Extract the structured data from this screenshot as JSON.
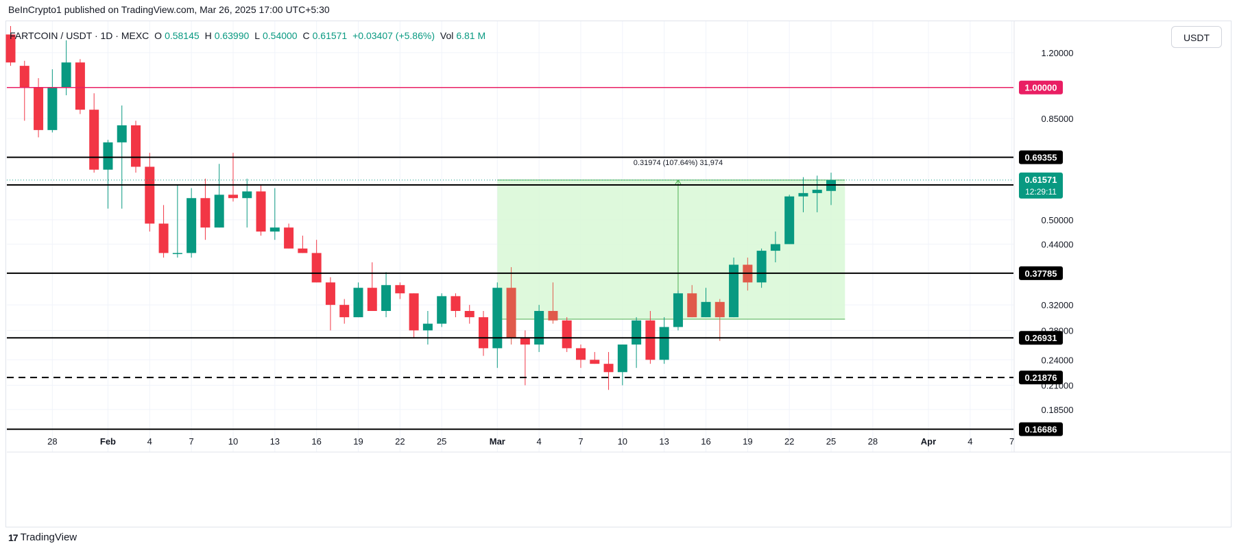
{
  "publisher": "BeInCrypto1 published on TradingView.com, Mar 26, 2025 17:00 UTC+5:30",
  "legend": {
    "symbol": "FARTCOIN / USDT · 1D · MEXC",
    "o_key": "O",
    "o": "0.58145",
    "h_key": "H",
    "h": "0.63990",
    "l_key": "L",
    "l": "0.54000",
    "c_key": "C",
    "c": "0.61571",
    "change": "+0.03407 (+5.86%)",
    "vol_key": "Vol",
    "vol": "6.81 M"
  },
  "currency_button": "USDT",
  "footer": {
    "brand": "TradingView",
    "logo": "17"
  },
  "colors": {
    "up": "#089981",
    "down": "#f23645",
    "down_alt": "#e05a4b",
    "magenta": "#e91e63",
    "measure": "#4caf50",
    "measure_fill": "#d8f8d6"
  },
  "chart_data": {
    "type": "candlestick",
    "y_scale": "log",
    "ylim": [
      0.148,
      1.42
    ],
    "xlim": [
      "2025-01-25",
      "2025-04-09"
    ],
    "y_ticks": [
      "1.20000",
      "0.85000",
      "0.50000",
      "0.44000",
      "0.32000",
      "0.28000",
      "0.24000",
      "0.21000",
      "0.18500"
    ],
    "x_ticks": [
      {
        "date": "2025-01-28",
        "label": "28"
      },
      {
        "date": "2025-02-01",
        "label": "Feb",
        "bold": true
      },
      {
        "date": "2025-02-04",
        "label": "4"
      },
      {
        "date": "2025-02-07",
        "label": "7"
      },
      {
        "date": "2025-02-10",
        "label": "10"
      },
      {
        "date": "2025-02-13",
        "label": "13"
      },
      {
        "date": "2025-02-16",
        "label": "16"
      },
      {
        "date": "2025-02-19",
        "label": "19"
      },
      {
        "date": "2025-02-22",
        "label": "22"
      },
      {
        "date": "2025-02-25",
        "label": "25"
      },
      {
        "date": "2025-03-01",
        "label": "Mar",
        "bold": true
      },
      {
        "date": "2025-03-04",
        "label": "4"
      },
      {
        "date": "2025-03-07",
        "label": "7"
      },
      {
        "date": "2025-03-10",
        "label": "10"
      },
      {
        "date": "2025-03-13",
        "label": "13"
      },
      {
        "date": "2025-03-16",
        "label": "16"
      },
      {
        "date": "2025-03-19",
        "label": "19"
      },
      {
        "date": "2025-03-22",
        "label": "22"
      },
      {
        "date": "2025-03-25",
        "label": "25"
      },
      {
        "date": "2025-03-28",
        "label": "28"
      },
      {
        "date": "2025-04-01",
        "label": "Apr",
        "bold": true
      },
      {
        "date": "2025-04-04",
        "label": "4"
      },
      {
        "date": "2025-04-07",
        "label": "7"
      }
    ],
    "levels": [
      {
        "value": 1.0,
        "label": "1.00000",
        "color": "#e91e63",
        "style": "solid"
      },
      {
        "value": 0.69355,
        "label": "0.69355",
        "color": "#000000",
        "style": "solid"
      },
      {
        "value": 0.6,
        "label": "0.60000",
        "color": "#000000",
        "style": "solid"
      },
      {
        "value": 0.37785,
        "label": "0.37785",
        "color": "#000000",
        "style": "solid"
      },
      {
        "value": 0.26931,
        "label": "0.26931",
        "color": "#000000",
        "style": "solid"
      },
      {
        "value": 0.21876,
        "label": "0.21876",
        "color": "#000000",
        "style": "dashed"
      },
      {
        "value": 0.16686,
        "label": "0.16686",
        "color": "#000000",
        "style": "solid"
      }
    ],
    "last_price": {
      "value": 0.61571,
      "label": "0.61571",
      "countdown": "12:29:11",
      "color": "#089981"
    },
    "measure": {
      "start_date": "2025-03-01",
      "end_date": "2025-03-26",
      "low": 0.297,
      "high": 0.61571,
      "arrow_date": "2025-03-14",
      "label": "0.31974 (107.64%) 31,974"
    },
    "candles": [
      {
        "d": "2025-01-25",
        "o": 1.32,
        "h": 1.38,
        "l": 1.12,
        "c": 1.14
      },
      {
        "d": "2025-01-26",
        "o": 1.12,
        "h": 1.15,
        "l": 0.84,
        "c": 1.0
      },
      {
        "d": "2025-01-27",
        "o": 1.0,
        "h": 1.05,
        "l": 0.77,
        "c": 0.8
      },
      {
        "d": "2025-01-28",
        "o": 0.8,
        "h": 1.1,
        "l": 0.79,
        "c": 1.0
      },
      {
        "d": "2025-01-29",
        "o": 1.0,
        "h": 1.28,
        "l": 0.96,
        "c": 1.14
      },
      {
        "d": "2025-01-30",
        "o": 1.14,
        "h": 1.16,
        "l": 0.87,
        "c": 0.89
      },
      {
        "d": "2025-01-31",
        "o": 0.89,
        "h": 0.97,
        "l": 0.64,
        "c": 0.65
      },
      {
        "d": "2025-02-01",
        "o": 0.65,
        "h": 0.76,
        "l": 0.53,
        "c": 0.75
      },
      {
        "d": "2025-02-02",
        "o": 0.75,
        "h": 0.91,
        "l": 0.53,
        "c": 0.82
      },
      {
        "d": "2025-02-03",
        "o": 0.82,
        "h": 0.84,
        "l": 0.64,
        "c": 0.66
      },
      {
        "d": "2025-02-04",
        "o": 0.66,
        "h": 0.71,
        "l": 0.47,
        "c": 0.49
      },
      {
        "d": "2025-02-05",
        "o": 0.49,
        "h": 0.54,
        "l": 0.41,
        "c": 0.42
      },
      {
        "d": "2025-02-06",
        "o": 0.42,
        "h": 0.6,
        "l": 0.41,
        "c": 0.42
      },
      {
        "d": "2025-02-07",
        "o": 0.42,
        "h": 0.59,
        "l": 0.41,
        "c": 0.56
      },
      {
        "d": "2025-02-08",
        "o": 0.56,
        "h": 0.62,
        "l": 0.45,
        "c": 0.48
      },
      {
        "d": "2025-02-09",
        "o": 0.48,
        "h": 0.67,
        "l": 0.48,
        "c": 0.57
      },
      {
        "d": "2025-02-10",
        "o": 0.57,
        "h": 0.71,
        "l": 0.55,
        "c": 0.56
      },
      {
        "d": "2025-02-11",
        "o": 0.56,
        "h": 0.62,
        "l": 0.48,
        "c": 0.58
      },
      {
        "d": "2025-02-12",
        "o": 0.58,
        "h": 0.6,
        "l": 0.46,
        "c": 0.47
      },
      {
        "d": "2025-02-13",
        "o": 0.47,
        "h": 0.59,
        "l": 0.45,
        "c": 0.48
      },
      {
        "d": "2025-02-14",
        "o": 0.48,
        "h": 0.49,
        "l": 0.43,
        "c": 0.43
      },
      {
        "d": "2025-02-15",
        "o": 0.43,
        "h": 0.46,
        "l": 0.42,
        "c": 0.42
      },
      {
        "d": "2025-02-16",
        "o": 0.42,
        "h": 0.45,
        "l": 0.36,
        "c": 0.36
      },
      {
        "d": "2025-02-17",
        "o": 0.36,
        "h": 0.37,
        "l": 0.28,
        "c": 0.32
      },
      {
        "d": "2025-02-18",
        "o": 0.32,
        "h": 0.33,
        "l": 0.29,
        "c": 0.3
      },
      {
        "d": "2025-02-19",
        "o": 0.3,
        "h": 0.36,
        "l": 0.3,
        "c": 0.35
      },
      {
        "d": "2025-02-20",
        "o": 0.35,
        "h": 0.4,
        "l": 0.31,
        "c": 0.31
      },
      {
        "d": "2025-02-21",
        "o": 0.31,
        "h": 0.38,
        "l": 0.3,
        "c": 0.355
      },
      {
        "d": "2025-02-22",
        "o": 0.355,
        "h": 0.36,
        "l": 0.33,
        "c": 0.34
      },
      {
        "d": "2025-02-23",
        "o": 0.34,
        "h": 0.34,
        "l": 0.27,
        "c": 0.28
      },
      {
        "d": "2025-02-24",
        "o": 0.28,
        "h": 0.31,
        "l": 0.26,
        "c": 0.29
      },
      {
        "d": "2025-02-25",
        "o": 0.29,
        "h": 0.34,
        "l": 0.285,
        "c": 0.335
      },
      {
        "d": "2025-02-26",
        "o": 0.335,
        "h": 0.34,
        "l": 0.3,
        "c": 0.31
      },
      {
        "d": "2025-02-27",
        "o": 0.31,
        "h": 0.32,
        "l": 0.29,
        "c": 0.3
      },
      {
        "d": "2025-02-28",
        "o": 0.3,
        "h": 0.31,
        "l": 0.245,
        "c": 0.255
      },
      {
        "d": "2025-03-01",
        "o": 0.255,
        "h": 0.36,
        "l": 0.23,
        "c": 0.35
      },
      {
        "d": "2025-03-02",
        "o": 0.35,
        "h": 0.39,
        "l": 0.26,
        "c": 0.27,
        "alt": true
      },
      {
        "d": "2025-03-03",
        "o": 0.27,
        "h": 0.28,
        "l": 0.21,
        "c": 0.26
      },
      {
        "d": "2025-03-04",
        "o": 0.26,
        "h": 0.32,
        "l": 0.25,
        "c": 0.31
      },
      {
        "d": "2025-03-05",
        "o": 0.31,
        "h": 0.36,
        "l": 0.29,
        "c": 0.295,
        "alt": true
      },
      {
        "d": "2025-03-06",
        "o": 0.295,
        "h": 0.3,
        "l": 0.25,
        "c": 0.255
      },
      {
        "d": "2025-03-07",
        "o": 0.255,
        "h": 0.26,
        "l": 0.23,
        "c": 0.24
      },
      {
        "d": "2025-03-08",
        "o": 0.24,
        "h": 0.25,
        "l": 0.235,
        "c": 0.235
      },
      {
        "d": "2025-03-09",
        "o": 0.235,
        "h": 0.25,
        "l": 0.205,
        "c": 0.225
      },
      {
        "d": "2025-03-10",
        "o": 0.225,
        "h": 0.26,
        "l": 0.21,
        "c": 0.26
      },
      {
        "d": "2025-03-11",
        "o": 0.26,
        "h": 0.3,
        "l": 0.23,
        "c": 0.295
      },
      {
        "d": "2025-03-12",
        "o": 0.295,
        "h": 0.31,
        "l": 0.235,
        "c": 0.24
      },
      {
        "d": "2025-03-13",
        "o": 0.24,
        "h": 0.3,
        "l": 0.235,
        "c": 0.285
      },
      {
        "d": "2025-03-14",
        "o": 0.285,
        "h": 0.345,
        "l": 0.28,
        "c": 0.34
      },
      {
        "d": "2025-03-15",
        "o": 0.34,
        "h": 0.355,
        "l": 0.3,
        "c": 0.3,
        "alt": true
      },
      {
        "d": "2025-03-16",
        "o": 0.3,
        "h": 0.35,
        "l": 0.3,
        "c": 0.325
      },
      {
        "d": "2025-03-17",
        "o": 0.325,
        "h": 0.33,
        "l": 0.265,
        "c": 0.3,
        "alt": true
      },
      {
        "d": "2025-03-18",
        "o": 0.3,
        "h": 0.41,
        "l": 0.3,
        "c": 0.395
      },
      {
        "d": "2025-03-19",
        "o": 0.395,
        "h": 0.41,
        "l": 0.345,
        "c": 0.36,
        "alt": true
      },
      {
        "d": "2025-03-20",
        "o": 0.36,
        "h": 0.43,
        "l": 0.35,
        "c": 0.425
      },
      {
        "d": "2025-03-21",
        "o": 0.425,
        "h": 0.47,
        "l": 0.4,
        "c": 0.44
      },
      {
        "d": "2025-03-22",
        "o": 0.44,
        "h": 0.57,
        "l": 0.44,
        "c": 0.565
      },
      {
        "d": "2025-03-23",
        "o": 0.565,
        "h": 0.625,
        "l": 0.52,
        "c": 0.575
      },
      {
        "d": "2025-03-24",
        "o": 0.575,
        "h": 0.63,
        "l": 0.52,
        "c": 0.585
      },
      {
        "d": "2025-03-25",
        "o": 0.58145,
        "h": 0.6399,
        "l": 0.54,
        "c": 0.61571
      }
    ]
  }
}
